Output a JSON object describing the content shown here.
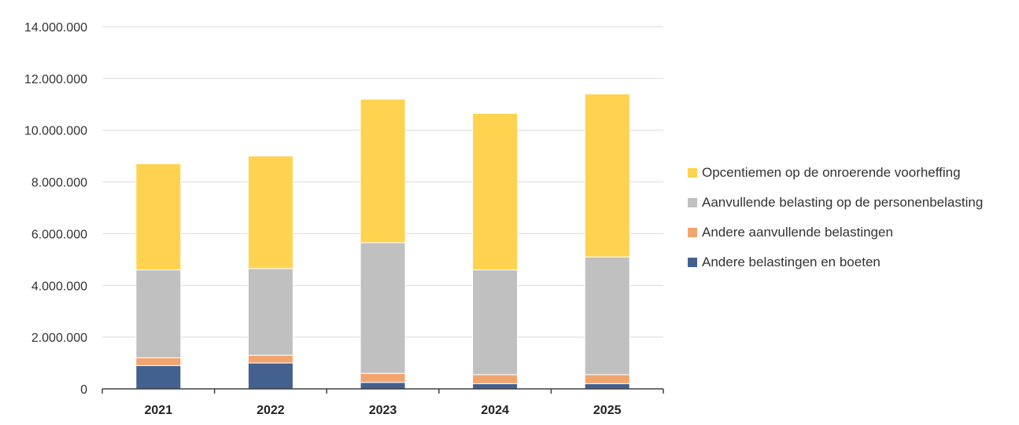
{
  "chart_data": {
    "type": "bar",
    "stacked": true,
    "categories": [
      "2021",
      "2022",
      "2023",
      "2024",
      "2025"
    ],
    "series": [
      {
        "name": "Andere belastingen en boeten",
        "color": "#44608E",
        "values": [
          900000,
          1000000,
          250000,
          200000,
          200000
        ]
      },
      {
        "name": "Andere aanvullende belastingen",
        "color": "#F2A46E",
        "values": [
          300000,
          300000,
          350000,
          350000,
          350000
        ]
      },
      {
        "name": "Aanvullende belasting op de personenbelasting",
        "color": "#C0C0C0",
        "values": [
          3400000,
          3350000,
          5050000,
          4050000,
          4550000
        ]
      },
      {
        "name": "Opcentiemen op de onroerende voorheffing",
        "color": "#FFD24F",
        "values": [
          4100000,
          4350000,
          5550000,
          6050000,
          6300000
        ]
      }
    ],
    "yticks": [
      "0",
      "2.000.000",
      "4.000.000",
      "6.000.000",
      "8.000.000",
      "10.000.000",
      "12.000.000",
      "14.000.000"
    ],
    "ylim": [
      0,
      14000000
    ],
    "grid": true,
    "legend_position": "right",
    "title": "",
    "xlabel": "",
    "ylabel": ""
  }
}
